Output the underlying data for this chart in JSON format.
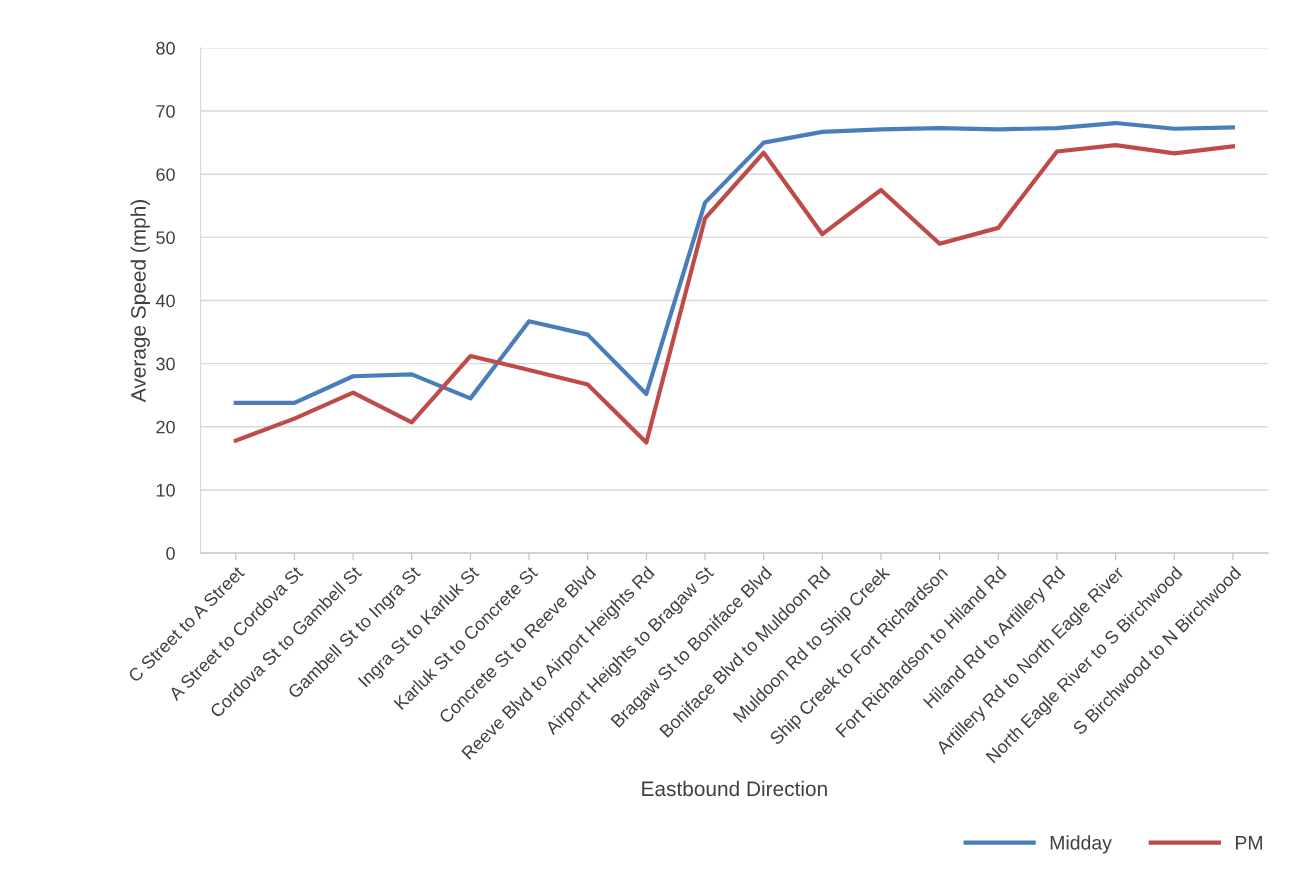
{
  "chart_data": {
    "type": "line",
    "xlabel": "Eastbound Direction",
    "ylabel": "Average Speed (mph)",
    "categories": [
      "C Street to A Street",
      "A Street to Cordova St",
      "Cordova St to Gambell St",
      "Gambell St to Ingra St",
      "Ingra St to Karluk St",
      "Karluk St to Concrete St",
      "Concrete St to Reeve Blvd",
      "Reeve Blvd to Airport Heights Rd",
      "Airport Heights to Bragaw St",
      "Bragaw St to Boniface Blvd",
      "Boniface Blvd to Muldoon Rd",
      "Muldoon Rd to Ship Creek",
      "Ship Creek to Fort Richardson",
      "Fort Richardson to Hiland Rd",
      "Hiland Rd to Artillery Rd",
      "Artillery Rd to North Eagle River",
      "North Eagle River to S Birchwood",
      "S Birchwood to N Birchwood"
    ],
    "series": [
      {
        "name": "Midday",
        "color": "#4a7ebb",
        "values": [
          23.8,
          23.8,
          28,
          28.3,
          24.5,
          36.7,
          34.6,
          25.2,
          55.5,
          65,
          66.7,
          67.1,
          67.3,
          67.1,
          67.3,
          68.1,
          67.2,
          67.4
        ]
      },
      {
        "name": "PM",
        "color": "#be4b48",
        "values": [
          17.8,
          21.3,
          25.4,
          20.7,
          31.2,
          29,
          26.7,
          17.5,
          53,
          63.4,
          50.5,
          57.5,
          49,
          51.5,
          63.6,
          64.6,
          63.3,
          64.4
        ]
      }
    ],
    "ylim": [
      0,
      80
    ],
    "yticks": [
      0,
      10,
      20,
      30,
      40,
      50,
      60,
      70,
      80
    ],
    "grid": "y",
    "legend": "bottom right",
    "marker": "none",
    "line_style": "solid"
  }
}
